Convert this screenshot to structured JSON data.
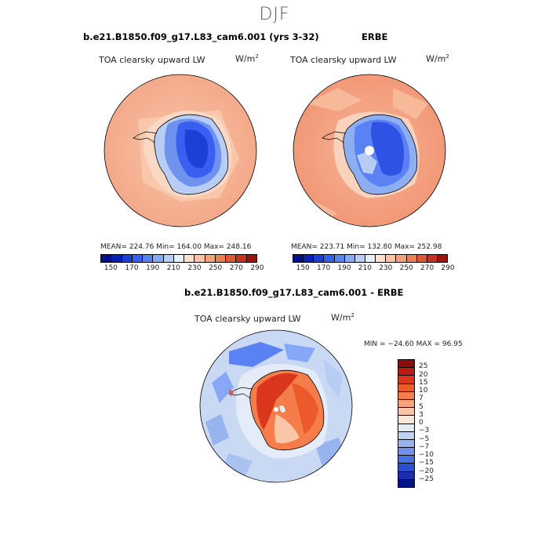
{
  "page": {
    "season": "DJF"
  },
  "panels": [
    {
      "title": "b.e21.B1850.f09_g17.L83_cam6.001 (yrs 3-32)",
      "variable": "TOA clearsky upward LW",
      "units": "W/m",
      "units_exp": "2",
      "stats": "MEAN= 224.76   Min= 164.00   Max= 248.16"
    },
    {
      "title": "ERBE",
      "variable": "TOA clearsky upward LW",
      "units": "W/m",
      "units_exp": "2",
      "stats": "MEAN= 223.71   Min= 132.80   Max= 252.98"
    },
    {
      "title": "b.e21.B1850.f09_g17.L83_cam6.001 - ERBE",
      "variable": "TOA clearsky upward LW",
      "units": "W/m",
      "units_exp": "2",
      "stats": "MIN = −24.60 MAX =  96.95"
    }
  ],
  "chart_data": [
    {
      "type": "heatmap",
      "projection": "south polar stereographic",
      "title": "b.e21.B1850.f09_g17.L83_cam6.001 (yrs 3-32)",
      "variable": "TOA clearsky upward LW",
      "units": "W/m2",
      "mean": 224.76,
      "min": 164.0,
      "max": 248.16,
      "colorbar": {
        "tick_labels": [
          "150",
          "170",
          "190",
          "210",
          "230",
          "250",
          "270",
          "290"
        ],
        "colors": [
          "#000f8c",
          "#0a1fb4",
          "#1e3fd6",
          "#3a5ef0",
          "#5b82f5",
          "#86a8f7",
          "#b7cdf4",
          "#e6eef7",
          "#fbe3d3",
          "#f9c3a6",
          "#f5a07c",
          "#ef7b58",
          "#e2553a",
          "#c93023",
          "#9e1212"
        ]
      }
    },
    {
      "type": "heatmap",
      "projection": "south polar stereographic",
      "title": "ERBE",
      "variable": "TOA clearsky upward LW",
      "units": "W/m2",
      "mean": 223.71,
      "min": 132.8,
      "max": 252.98,
      "colorbar": {
        "tick_labels": [
          "150",
          "170",
          "190",
          "210",
          "230",
          "250",
          "270",
          "290"
        ],
        "colors": [
          "#000f8c",
          "#0a1fb4",
          "#1e3fd6",
          "#3a5ef0",
          "#5b82f5",
          "#86a8f7",
          "#b7cdf4",
          "#e6eef7",
          "#fbe3d3",
          "#f9c3a6",
          "#f5a07c",
          "#ef7b58",
          "#e2553a",
          "#c93023",
          "#9e1212"
        ]
      }
    },
    {
      "type": "heatmap",
      "projection": "south polar stereographic",
      "title": "b.e21.B1850.f09_g17.L83_cam6.001 - ERBE",
      "variable": "TOA clearsky upward LW",
      "units": "W/m2",
      "min": -24.6,
      "max": 96.95,
      "colorbar": {
        "tick_labels": [
          "25",
          "20",
          "15",
          "10",
          "7",
          "5",
          "3",
          "0",
          "−3",
          "−5",
          "−7",
          "−10",
          "−15",
          "−20",
          "−25"
        ],
        "colors": [
          "#8c0d0d",
          "#b81b12",
          "#d9361c",
          "#ec5a2c",
          "#f57d4c",
          "#f8a27a",
          "#fbc6a8",
          "#fde6d6",
          "#e4ecf7",
          "#bfd2f2",
          "#98b4ee",
          "#7192e9",
          "#4d70e0",
          "#2c4fd1",
          "#1330b3",
          "#000f8c"
        ]
      }
    }
  ]
}
